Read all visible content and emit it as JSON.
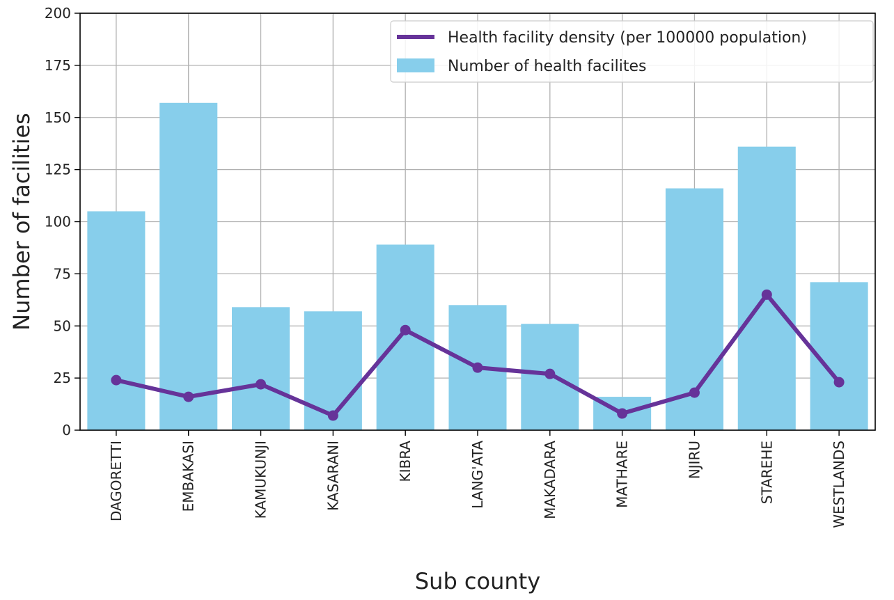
{
  "chart_data": {
    "type": "bar",
    "title": "",
    "xlabel": "Sub county",
    "ylabel": "Number of facilities",
    "ylim": [
      0,
      200
    ],
    "yticks": [
      0,
      25,
      50,
      75,
      100,
      125,
      150,
      175,
      200
    ],
    "grid": true,
    "legend_position": "top-right",
    "categories": [
      "DAGORETTI",
      "EMBAKASI",
      "KAMUKUNJI",
      "KASARANI",
      "KIBRA",
      "LANG'ATA",
      "MAKADARA",
      "MATHARE",
      "NJIRU",
      "STAREHE",
      "WESTLANDS"
    ],
    "series": [
      {
        "name": "Number of health facilites",
        "type": "bar",
        "color": "#87ceeb",
        "values": [
          105,
          157,
          59,
          57,
          89,
          60,
          51,
          16,
          116,
          136,
          71
        ]
      },
      {
        "name": "Health facility density (per 100000 population)",
        "type": "line",
        "color": "#663399",
        "values": [
          24,
          16,
          22,
          7,
          48,
          30,
          27,
          8,
          18,
          65,
          23
        ]
      }
    ]
  }
}
